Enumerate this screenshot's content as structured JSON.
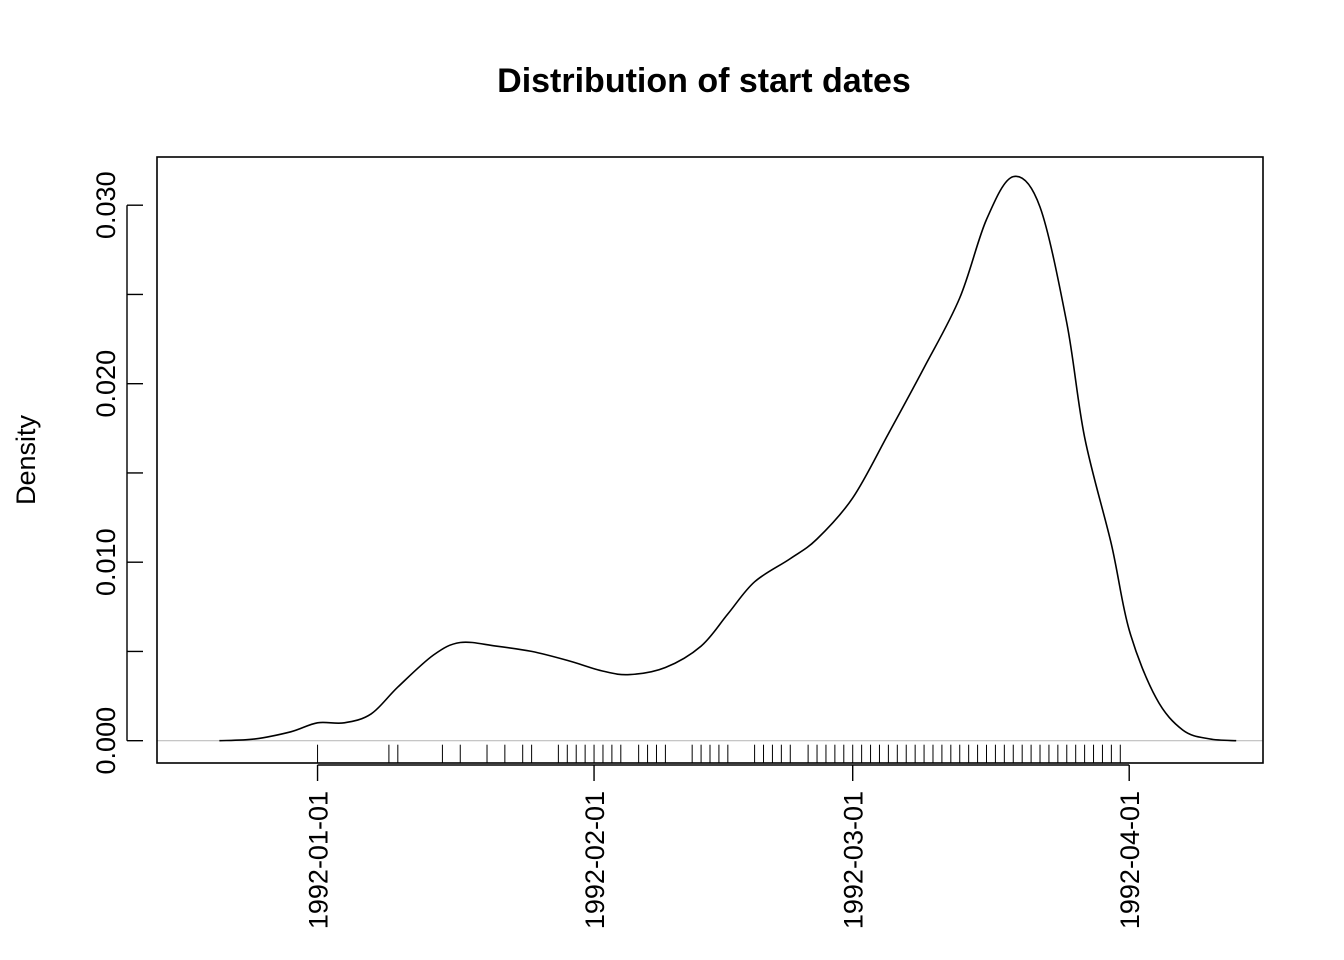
{
  "chart_data": {
    "type": "line",
    "title": "Distribution of start dates",
    "xlabel": "",
    "ylabel": "Density",
    "xlim": [
      "1991-12-14",
      "1992-04-16"
    ],
    "ylim": [
      -0.00125,
      0.0327
    ],
    "grid": false,
    "legend": "none",
    "x_ticks": [
      {
        "date": "1992-01-01",
        "label": "1992-01-01"
      },
      {
        "date": "1992-02-01",
        "label": "1992-02-01"
      },
      {
        "date": "1992-03-01",
        "label": "1992-03-01"
      },
      {
        "date": "1992-04-01",
        "label": "1992-04-01"
      }
    ],
    "y_ticks": [
      {
        "value": 0.0,
        "label": "0.000"
      },
      {
        "value": 0.005,
        "label": ""
      },
      {
        "value": 0.01,
        "label": "0.010"
      },
      {
        "value": 0.015,
        "label": ""
      },
      {
        "value": 0.02,
        "label": "0.020"
      },
      {
        "value": 0.025,
        "label": ""
      },
      {
        "value": 0.03,
        "label": "0.030"
      }
    ],
    "series": [
      {
        "x": [
          "1991-12-21",
          "1991-12-25",
          "1991-12-29",
          "1992-01-01",
          "1992-01-04",
          "1992-01-07",
          "1992-01-10",
          "1992-01-14",
          "1992-01-17",
          "1992-01-21",
          "1992-01-25",
          "1992-01-29",
          "1992-02-02",
          "1992-02-05",
          "1992-02-09",
          "1992-02-13",
          "1992-02-16",
          "1992-02-19",
          "1992-02-23",
          "1992-02-26",
          "1992-03-01",
          "1992-03-05",
          "1992-03-09",
          "1992-03-13",
          "1992-03-16",
          "1992-03-19",
          "1992-03-22",
          "1992-03-25",
          "1992-03-27",
          "1992-03-30",
          "1992-04-01",
          "1992-04-04",
          "1992-04-07",
          "1992-04-10",
          "1992-04-13"
        ],
        "y": [
          0.0,
          0.0001,
          0.0005,
          0.001,
          0.001,
          0.0015,
          0.003,
          0.0048,
          0.0055,
          0.0053,
          0.005,
          0.0045,
          0.0039,
          0.0037,
          0.0041,
          0.0053,
          0.0071,
          0.0089,
          0.0102,
          0.0113,
          0.0136,
          0.0172,
          0.0209,
          0.0248,
          0.0292,
          0.0316,
          0.0299,
          0.0234,
          0.017,
          0.011,
          0.0062,
          0.0024,
          0.0006,
          0.0001,
          0.0
        ]
      }
    ],
    "rug": [
      "1992-01-01",
      "1992-01-09",
      "1992-01-10",
      "1992-01-15",
      "1992-01-17",
      "1992-01-20",
      "1992-01-22",
      "1992-01-24",
      "1992-01-25",
      "1992-01-28",
      "1992-01-29",
      "1992-01-30",
      "1992-01-31",
      "1992-02-01",
      "1992-02-02",
      "1992-02-03",
      "1992-02-04",
      "1992-02-06",
      "1992-02-07",
      "1992-02-08",
      "1992-02-09",
      "1992-02-12",
      "1992-02-13",
      "1992-02-14",
      "1992-02-15",
      "1992-02-16",
      "1992-02-19",
      "1992-02-20",
      "1992-02-21",
      "1992-02-22",
      "1992-02-23",
      "1992-02-25",
      "1992-02-26",
      "1992-02-27",
      "1992-02-28",
      "1992-02-29",
      "1992-03-01",
      "1992-03-02",
      "1992-03-03",
      "1992-03-04",
      "1992-03-05",
      "1992-03-06",
      "1992-03-07",
      "1992-03-08",
      "1992-03-09",
      "1992-03-10",
      "1992-03-11",
      "1992-03-12",
      "1992-03-13",
      "1992-03-14",
      "1992-03-15",
      "1992-03-16",
      "1992-03-17",
      "1992-03-18",
      "1992-03-19",
      "1992-03-20",
      "1992-03-21",
      "1992-03-22",
      "1992-03-23",
      "1992-03-24",
      "1992-03-25",
      "1992-03-26",
      "1992-03-27",
      "1992-03-28",
      "1992-03-29",
      "1992-03-30",
      "1992-03-31"
    ],
    "colors": {
      "line": "#000000",
      "baseline": "#bebebe",
      "frame": "#000000"
    }
  }
}
